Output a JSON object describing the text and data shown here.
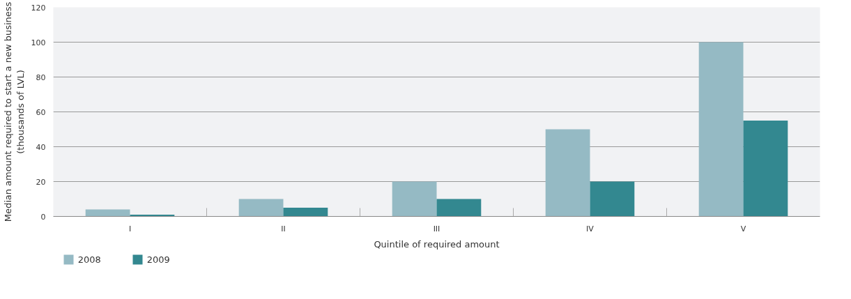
{
  "chart_data": {
    "type": "bar",
    "xlabel": "Quintile of required amount",
    "ylabel": "Median amount required to start a new business\n(thousands of LVL)",
    "categories": [
      "I",
      "II",
      "III",
      "IV",
      "V"
    ],
    "series": [
      {
        "name": "2008",
        "color": "#95bac4",
        "values": [
          4,
          10,
          20,
          50,
          100
        ]
      },
      {
        "name": "2009",
        "color": "#338890",
        "values": [
          1,
          5,
          10,
          20,
          55
        ]
      }
    ],
    "ylim": [
      0,
      120
    ],
    "yticks": [
      0,
      20,
      40,
      60,
      80,
      100,
      120
    ],
    "grid": "y",
    "legend": "bottom left"
  }
}
